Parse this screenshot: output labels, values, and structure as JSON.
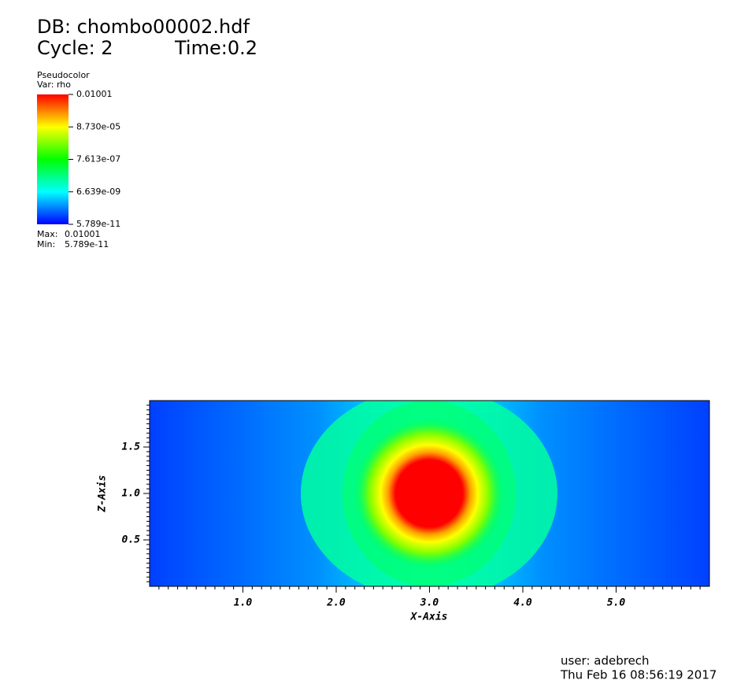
{
  "header": {
    "db": "DB: chombo00002.hdf",
    "cycle": "Cycle: 2",
    "time": "Time:0.2"
  },
  "legend": {
    "plot": "Pseudocolor",
    "var": "Var: rho",
    "ticks": [
      "0.01001",
      "8.730e-05",
      "7.613e-07",
      "6.639e-09",
      "5.789e-11"
    ],
    "max_label": "Max:",
    "max": "0.01001",
    "min_label": "Min:",
    "min": "5.789e-11"
  },
  "chart_data": {
    "type": "pseudocolor",
    "xlabel": "X-Axis",
    "ylabel": "Z-Axis",
    "xlim": [
      0,
      6
    ],
    "ylim": [
      0,
      2
    ],
    "xticks": [
      {
        "value": 1,
        "label": "1.0"
      },
      {
        "value": 2,
        "label": "2.0"
      },
      {
        "value": 3,
        "label": "3.0"
      },
      {
        "value": 4,
        "label": "4.0"
      },
      {
        "value": 5,
        "label": "5.0"
      }
    ],
    "yticks": [
      {
        "value": 0.5,
        "label": "0.5"
      },
      {
        "value": 1,
        "label": "1.0"
      },
      {
        "value": 1.5,
        "label": "1.5"
      }
    ]
  },
  "footer": {
    "user": "user: adebrech",
    "date": "Thu Feb 16 08:56:19 2017"
  }
}
